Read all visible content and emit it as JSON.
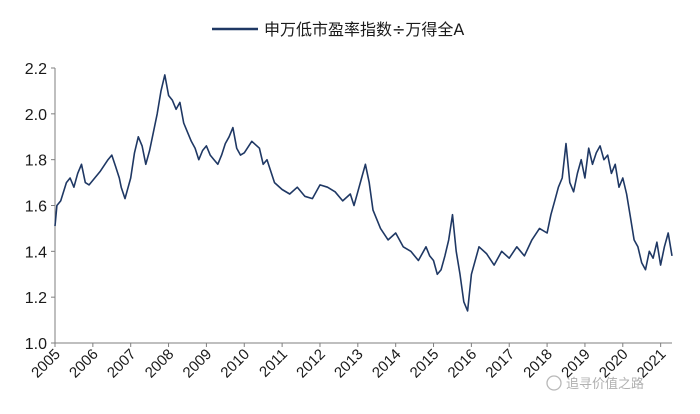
{
  "chart_data": {
    "type": "line",
    "title": "",
    "xlabel": "",
    "ylabel": "",
    "ylim": [
      1.0,
      2.2
    ],
    "yticks": [
      "1.0",
      "1.2",
      "1.4",
      "1.6",
      "1.8",
      "2.0",
      "2.2"
    ],
    "xticks": [
      "2005",
      "2006",
      "2007",
      "2008",
      "2009",
      "2010",
      "2011",
      "2012",
      "2013",
      "2014",
      "2015",
      "2016",
      "2017",
      "2018",
      "2019",
      "2020",
      "2021"
    ],
    "xlim": [
      2005.0,
      2021.3
    ],
    "grid": false,
    "legend_position": "top-center",
    "colors": {
      "series": "#1f3864",
      "axis": "#7f7f7f"
    },
    "series": [
      {
        "name": "申万低市盈率指数÷万得全A",
        "x": [
          2005.0,
          2005.05,
          2005.15,
          2005.3,
          2005.4,
          2005.5,
          2005.6,
          2005.7,
          2005.8,
          2005.9,
          2006.0,
          2006.2,
          2006.4,
          2006.5,
          2006.6,
          2006.7,
          2006.75,
          2006.85,
          2007.0,
          2007.1,
          2007.2,
          2007.3,
          2007.4,
          2007.5,
          2007.6,
          2007.7,
          2007.8,
          2007.9,
          2008.0,
          2008.1,
          2008.2,
          2008.3,
          2008.4,
          2008.5,
          2008.6,
          2008.7,
          2008.8,
          2008.9,
          2009.0,
          2009.1,
          2009.2,
          2009.3,
          2009.4,
          2009.5,
          2009.6,
          2009.7,
          2009.8,
          2009.9,
          2010.0,
          2010.2,
          2010.4,
          2010.5,
          2010.6,
          2010.8,
          2011.0,
          2011.2,
          2011.4,
          2011.6,
          2011.8,
          2012.0,
          2012.2,
          2012.4,
          2012.6,
          2012.8,
          2012.9,
          2013.0,
          2013.1,
          2013.2,
          2013.3,
          2013.4,
          2013.6,
          2013.8,
          2014.0,
          2014.2,
          2014.4,
          2014.6,
          2014.8,
          2014.9,
          2015.0,
          2015.1,
          2015.2,
          2015.3,
          2015.4,
          2015.5,
          2015.6,
          2015.7,
          2015.8,
          2015.9,
          2016.0,
          2016.2,
          2016.4,
          2016.6,
          2016.8,
          2017.0,
          2017.2,
          2017.4,
          2017.6,
          2017.8,
          2018.0,
          2018.1,
          2018.2,
          2018.3,
          2018.4,
          2018.5,
          2018.6,
          2018.7,
          2018.8,
          2018.9,
          2019.0,
          2019.1,
          2019.2,
          2019.3,
          2019.4,
          2019.5,
          2019.6,
          2019.7,
          2019.8,
          2019.9,
          2020.0,
          2020.1,
          2020.2,
          2020.3,
          2020.4,
          2020.5,
          2020.6,
          2020.7,
          2020.8,
          2020.9,
          2021.0,
          2021.1,
          2021.2,
          2021.3
        ],
        "values": [
          1.51,
          1.6,
          1.62,
          1.7,
          1.72,
          1.68,
          1.74,
          1.78,
          1.7,
          1.69,
          1.71,
          1.75,
          1.8,
          1.82,
          1.77,
          1.72,
          1.68,
          1.63,
          1.72,
          1.83,
          1.9,
          1.86,
          1.78,
          1.84,
          1.92,
          2.0,
          2.1,
          2.17,
          2.08,
          2.06,
          2.02,
          2.05,
          1.96,
          1.92,
          1.88,
          1.85,
          1.8,
          1.84,
          1.86,
          1.82,
          1.8,
          1.78,
          1.82,
          1.87,
          1.9,
          1.94,
          1.85,
          1.82,
          1.83,
          1.88,
          1.85,
          1.78,
          1.8,
          1.7,
          1.67,
          1.65,
          1.68,
          1.64,
          1.63,
          1.69,
          1.68,
          1.66,
          1.62,
          1.65,
          1.6,
          1.66,
          1.72,
          1.78,
          1.7,
          1.58,
          1.5,
          1.45,
          1.48,
          1.42,
          1.4,
          1.36,
          1.42,
          1.38,
          1.36,
          1.3,
          1.32,
          1.38,
          1.45,
          1.56,
          1.4,
          1.3,
          1.18,
          1.14,
          1.3,
          1.42,
          1.39,
          1.34,
          1.4,
          1.37,
          1.42,
          1.38,
          1.45,
          1.5,
          1.48,
          1.56,
          1.62,
          1.68,
          1.72,
          1.87,
          1.7,
          1.66,
          1.74,
          1.8,
          1.72,
          1.85,
          1.78,
          1.83,
          1.86,
          1.8,
          1.82,
          1.74,
          1.78,
          1.68,
          1.72,
          1.65,
          1.55,
          1.45,
          1.42,
          1.35,
          1.32,
          1.4,
          1.37,
          1.44,
          1.34,
          1.42,
          1.48,
          1.38
        ]
      }
    ],
    "watermark": "追寻价值之路"
  }
}
